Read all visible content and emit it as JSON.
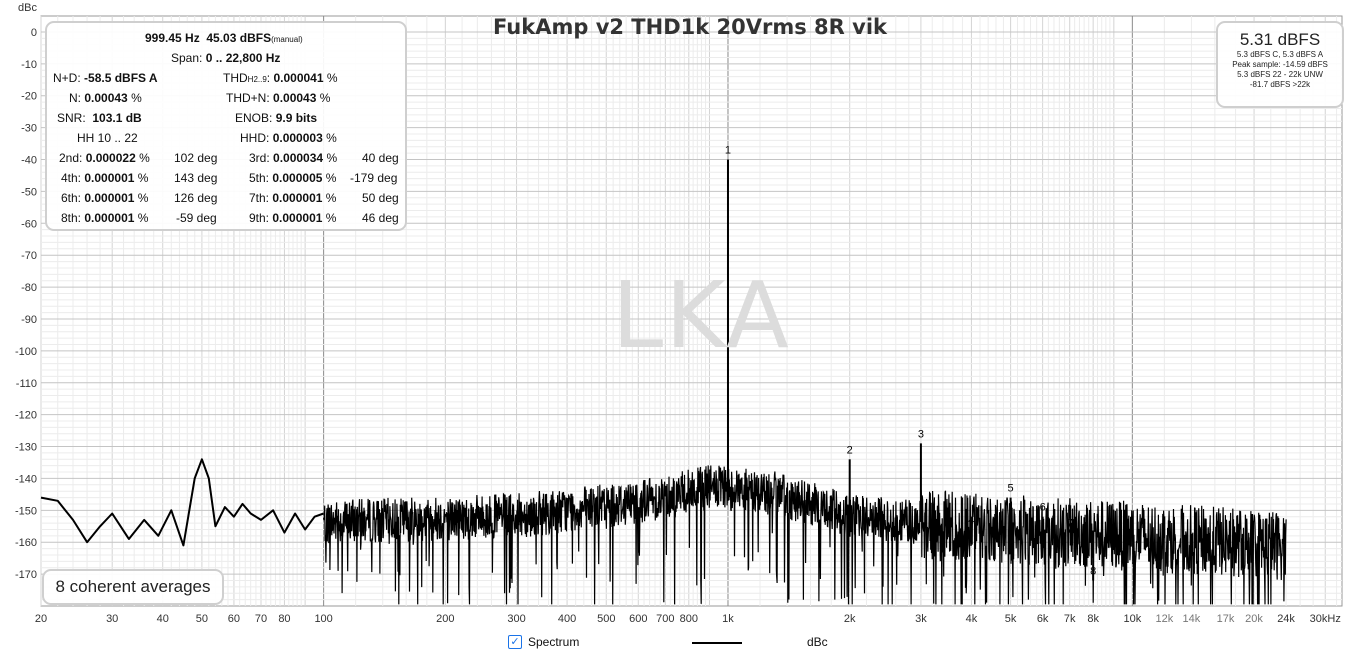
{
  "chart_data": {
    "type": "line",
    "title": "FukAmp v2 THD1k 20Vrms 8R vik",
    "ylabel": "dBc",
    "x_scale": "log",
    "xlim": [
      20,
      33000
    ],
    "ylim": [
      -180,
      5
    ],
    "grid": true,
    "y_ticks": [
      "0",
      "-10",
      "-20",
      "-30",
      "-40",
      "-50",
      "-60",
      "-70",
      "-80",
      "-90",
      "-100",
      "-110",
      "-120",
      "-130",
      "-140",
      "-150",
      "-160",
      "-170"
    ],
    "x_ticks": [
      {
        "f": 20,
        "label": "20"
      },
      {
        "f": 30,
        "label": "30"
      },
      {
        "f": 40,
        "label": "40"
      },
      {
        "f": 50,
        "label": "50"
      },
      {
        "f": 60,
        "label": "60"
      },
      {
        "f": 70,
        "label": "70"
      },
      {
        "f": 80,
        "label": "80"
      },
      {
        "f": 100,
        "label": "100"
      },
      {
        "f": 200,
        "label": "200"
      },
      {
        "f": 300,
        "label": "300"
      },
      {
        "f": 400,
        "label": "400"
      },
      {
        "f": 500,
        "label": "500"
      },
      {
        "f": 600,
        "label": "600"
      },
      {
        "f": 700,
        "label": "700"
      },
      {
        "f": 800,
        "label": "800"
      },
      {
        "f": 1000,
        "label": "1k"
      },
      {
        "f": 2000,
        "label": "2k"
      },
      {
        "f": 3000,
        "label": "3k"
      },
      {
        "f": 4000,
        "label": "4k"
      },
      {
        "f": 5000,
        "label": "5k"
      },
      {
        "f": 6000,
        "label": "6k"
      },
      {
        "f": 7000,
        "label": "7k"
      },
      {
        "f": 8000,
        "label": "8k"
      },
      {
        "f": 10000,
        "label": "10k"
      },
      {
        "f": 12000,
        "label": "12k",
        "minor": true
      },
      {
        "f": 14000,
        "label": "14k",
        "minor": true
      },
      {
        "f": 17000,
        "label": "17k",
        "minor": true
      },
      {
        "f": 20000,
        "label": "20k",
        "minor": true
      },
      {
        "f": 24000,
        "label": "24k"
      },
      {
        "f": 30000,
        "label": "30kHz"
      }
    ],
    "series": [
      {
        "name": "Spectrum",
        "color": "#000000",
        "smooth_points": [
          [
            20,
            -146
          ],
          [
            22,
            -147
          ],
          [
            24,
            -153
          ],
          [
            26,
            -160
          ],
          [
            28,
            -155
          ],
          [
            30,
            -151
          ],
          [
            33,
            -159
          ],
          [
            36,
            -153
          ],
          [
            39,
            -158
          ],
          [
            42,
            -150
          ],
          [
            45,
            -161
          ],
          [
            48,
            -140
          ],
          [
            50,
            -134
          ],
          [
            52,
            -140
          ],
          [
            54,
            -155
          ],
          [
            57,
            -149
          ],
          [
            60,
            -152
          ],
          [
            63,
            -148
          ],
          [
            66,
            -151
          ],
          [
            70,
            -153
          ],
          [
            75,
            -150
          ],
          [
            80,
            -157
          ],
          [
            85,
            -151
          ],
          [
            90,
            -156
          ],
          [
            95,
            -152
          ],
          [
            100,
            -151
          ]
        ],
        "noise_floor": [
          [
            100,
            -153
          ],
          [
            300,
            -151
          ],
          [
            500,
            -148
          ],
          [
            700,
            -145
          ],
          [
            900,
            -142
          ],
          [
            1300,
            -144
          ],
          [
            2000,
            -151
          ],
          [
            3000,
            -153
          ],
          [
            5000,
            -155
          ],
          [
            10000,
            -157
          ],
          [
            24000,
            -160
          ]
        ],
        "harmonics": [
          {
            "label": "1",
            "f": 1000,
            "db": -40
          },
          {
            "label": "2",
            "f": 2000,
            "db": -134
          },
          {
            "label": "3",
            "f": 3000,
            "db": -129
          },
          {
            "label": "4",
            "f": 4000,
            "db": -156
          },
          {
            "label": "5",
            "f": 5000,
            "db": -146
          },
          {
            "label": "6",
            "f": 6000,
            "db": -152
          },
          {
            "label": "7",
            "f": 7000,
            "db": -157
          },
          {
            "label": "8",
            "f": 8000,
            "db": -172
          },
          {
            "label": "9",
            "f": 9000,
            "db": -159
          }
        ]
      }
    ]
  },
  "unit_label": "dBc",
  "watermark": "LKA",
  "stats": {
    "freq": "999.45 Hz",
    "level": "45.03 dBFS",
    "level_note": "(manual)",
    "span_label": "Span:",
    "span": "0 .. 22,800 Hz",
    "nd_label": "N+D:",
    "nd": "-58.5 dBFS A",
    "thd_label": "THD",
    "thd_sub": "H2..9",
    "thd": "0.000041",
    "n_label": "N:",
    "n": "0.00043",
    "thdn_label": "THD+N:",
    "thdn": "0.00043",
    "snr_label": "SNR:",
    "snr": "103.1 dB",
    "enob_label": "ENOB:",
    "enob": "9.9 bits",
    "hh_label": "HH 10 .. 22",
    "hhd_label": "HHD:",
    "hhd": "0.000003",
    "pct": "%",
    "harm": [
      {
        "l1": "2nd:",
        "v1": "0.000022",
        "p1": "102 deg",
        "l2": "3rd:",
        "v2": "0.000034",
        "p2": "40 deg"
      },
      {
        "l1": "4th:",
        "v1": "0.000001",
        "p1": "143 deg",
        "l2": "5th:",
        "v2": "0.000005",
        "p2": "-179 deg"
      },
      {
        "l1": "6th:",
        "v1": "0.000001",
        "p1": "126 deg",
        "l2": "7th:",
        "v2": "0.000001",
        "p2": "50 deg"
      },
      {
        "l1": "8th:",
        "v1": "0.000001",
        "p1": "-59 deg",
        "l2": "9th:",
        "v2": "0.000001",
        "p2": "46 deg"
      }
    ]
  },
  "level_box": {
    "big": "5.31 dBFS",
    "lines": [
      "5.3 dBFS C, 5.3 dBFS A",
      "Peak sample: -14.59 dBFS",
      "5.3 dBFS 22 - 22k UNW",
      "-81.7 dBFS >22k"
    ]
  },
  "averages": "8 coherent averages",
  "legend": {
    "checkbox": "✓",
    "series": "Spectrum",
    "unit": "dBc"
  }
}
